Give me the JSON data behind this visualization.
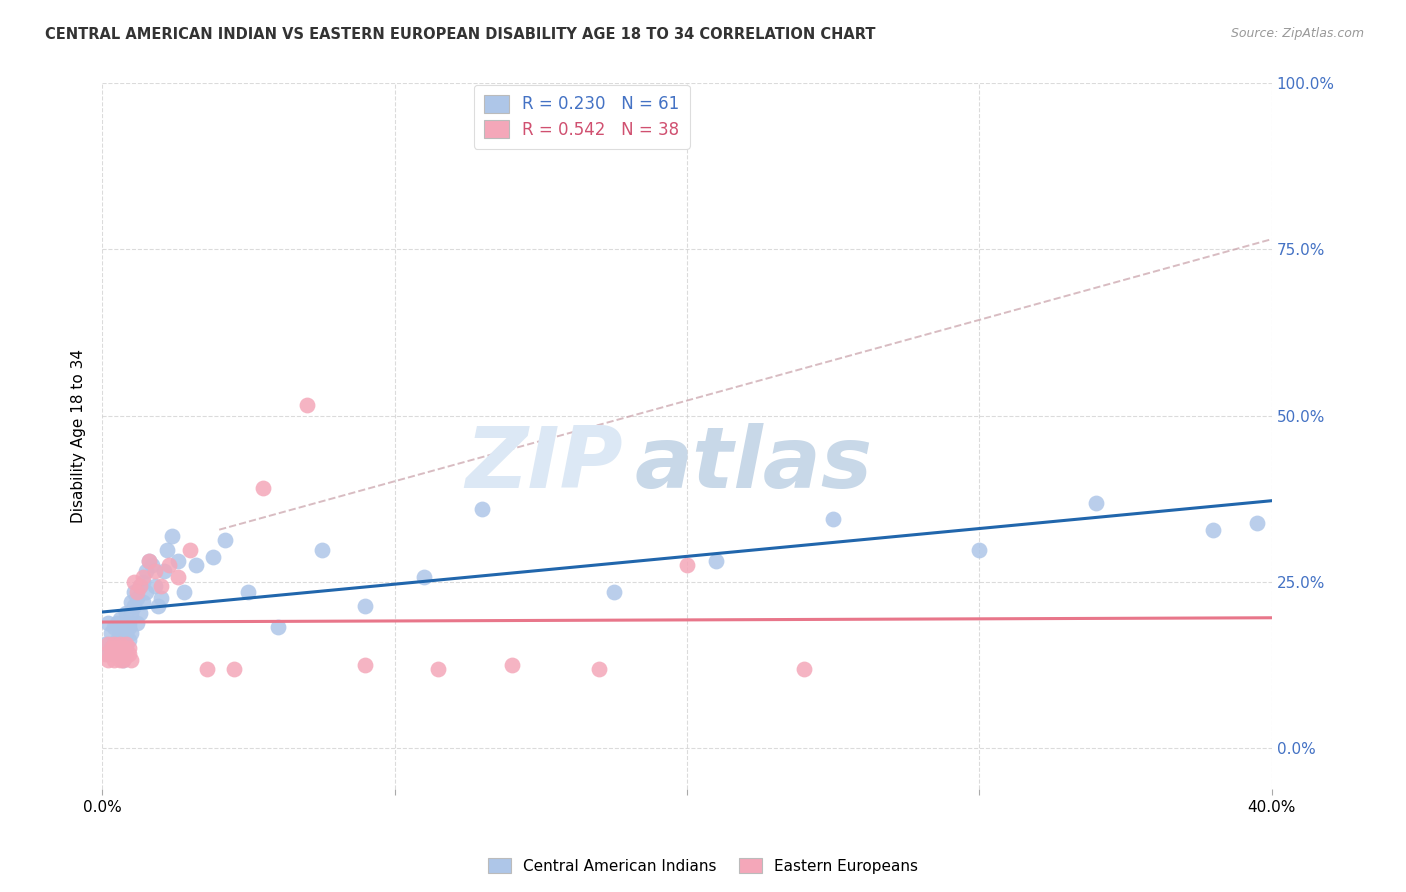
{
  "title": "CENTRAL AMERICAN INDIAN VS EASTERN EUROPEAN DISABILITY AGE 18 TO 34 CORRELATION CHART",
  "source": "Source: ZipAtlas.com",
  "ylabel": "Disability Age 18 to 34",
  "xlim": [
    0.0,
    0.4
  ],
  "ylim": [
    -0.02,
    0.32
  ],
  "xtick_positions": [
    0.0,
    0.1,
    0.2,
    0.3,
    0.4
  ],
  "xtick_labels": [
    "0.0%",
    "",
    "",
    "",
    "40.0%"
  ],
  "yticks_right_pos": [
    0.0,
    0.08,
    0.16,
    0.24,
    0.32
  ],
  "ytick_labels_right": [
    "0.0%",
    "25.0%",
    "50.0%",
    "75.0%",
    "100.0%"
  ],
  "blue_R": 0.23,
  "blue_N": 61,
  "pink_R": 0.542,
  "pink_N": 38,
  "blue_color": "#aec6e8",
  "pink_color": "#f4a7b9",
  "blue_line_color": "#2166ac",
  "pink_line_color": "#e8768a",
  "dashed_line_color": "#c8a0a8",
  "watermark_zip": "ZIP",
  "watermark_atlas": "atlas",
  "background_color": "#ffffff",
  "grid_color": "#cccccc",
  "blue_scatter_x": [
    0.001,
    0.002,
    0.002,
    0.003,
    0.003,
    0.004,
    0.004,
    0.005,
    0.005,
    0.005,
    0.006,
    0.006,
    0.006,
    0.007,
    0.007,
    0.007,
    0.008,
    0.008,
    0.008,
    0.009,
    0.009,
    0.009,
    0.01,
    0.01,
    0.01,
    0.011,
    0.011,
    0.012,
    0.012,
    0.013,
    0.013,
    0.014,
    0.014,
    0.015,
    0.015,
    0.016,
    0.017,
    0.018,
    0.019,
    0.02,
    0.021,
    0.022,
    0.024,
    0.026,
    0.028,
    0.032,
    0.038,
    0.042,
    0.05,
    0.06,
    0.075,
    0.09,
    0.11,
    0.13,
    0.175,
    0.21,
    0.25,
    0.3,
    0.34,
    0.38,
    0.395
  ],
  "blue_scatter_y": [
    0.05,
    0.045,
    0.06,
    0.048,
    0.055,
    0.05,
    0.058,
    0.045,
    0.052,
    0.06,
    0.048,
    0.055,
    0.062,
    0.05,
    0.058,
    0.042,
    0.055,
    0.048,
    0.065,
    0.058,
    0.052,
    0.06,
    0.065,
    0.07,
    0.055,
    0.068,
    0.075,
    0.06,
    0.072,
    0.078,
    0.065,
    0.08,
    0.07,
    0.085,
    0.075,
    0.09,
    0.088,
    0.078,
    0.068,
    0.072,
    0.085,
    0.095,
    0.102,
    0.09,
    0.075,
    0.088,
    0.092,
    0.1,
    0.075,
    0.058,
    0.095,
    0.068,
    0.082,
    0.115,
    0.075,
    0.09,
    0.11,
    0.095,
    0.118,
    0.105,
    0.108
  ],
  "pink_scatter_x": [
    0.001,
    0.002,
    0.002,
    0.003,
    0.003,
    0.004,
    0.004,
    0.005,
    0.005,
    0.006,
    0.006,
    0.007,
    0.007,
    0.008,
    0.008,
    0.009,
    0.009,
    0.01,
    0.011,
    0.012,
    0.013,
    0.014,
    0.016,
    0.018,
    0.02,
    0.023,
    0.026,
    0.03,
    0.036,
    0.045,
    0.055,
    0.07,
    0.09,
    0.115,
    0.14,
    0.17,
    0.2,
    0.24
  ],
  "pink_scatter_y": [
    0.045,
    0.042,
    0.05,
    0.045,
    0.048,
    0.042,
    0.05,
    0.045,
    0.048,
    0.042,
    0.05,
    0.042,
    0.048,
    0.044,
    0.05,
    0.045,
    0.048,
    0.042,
    0.08,
    0.075,
    0.078,
    0.082,
    0.09,
    0.085,
    0.078,
    0.088,
    0.082,
    0.095,
    0.038,
    0.038,
    0.125,
    0.165,
    0.04,
    0.038,
    0.04,
    0.038,
    0.088,
    0.038
  ]
}
